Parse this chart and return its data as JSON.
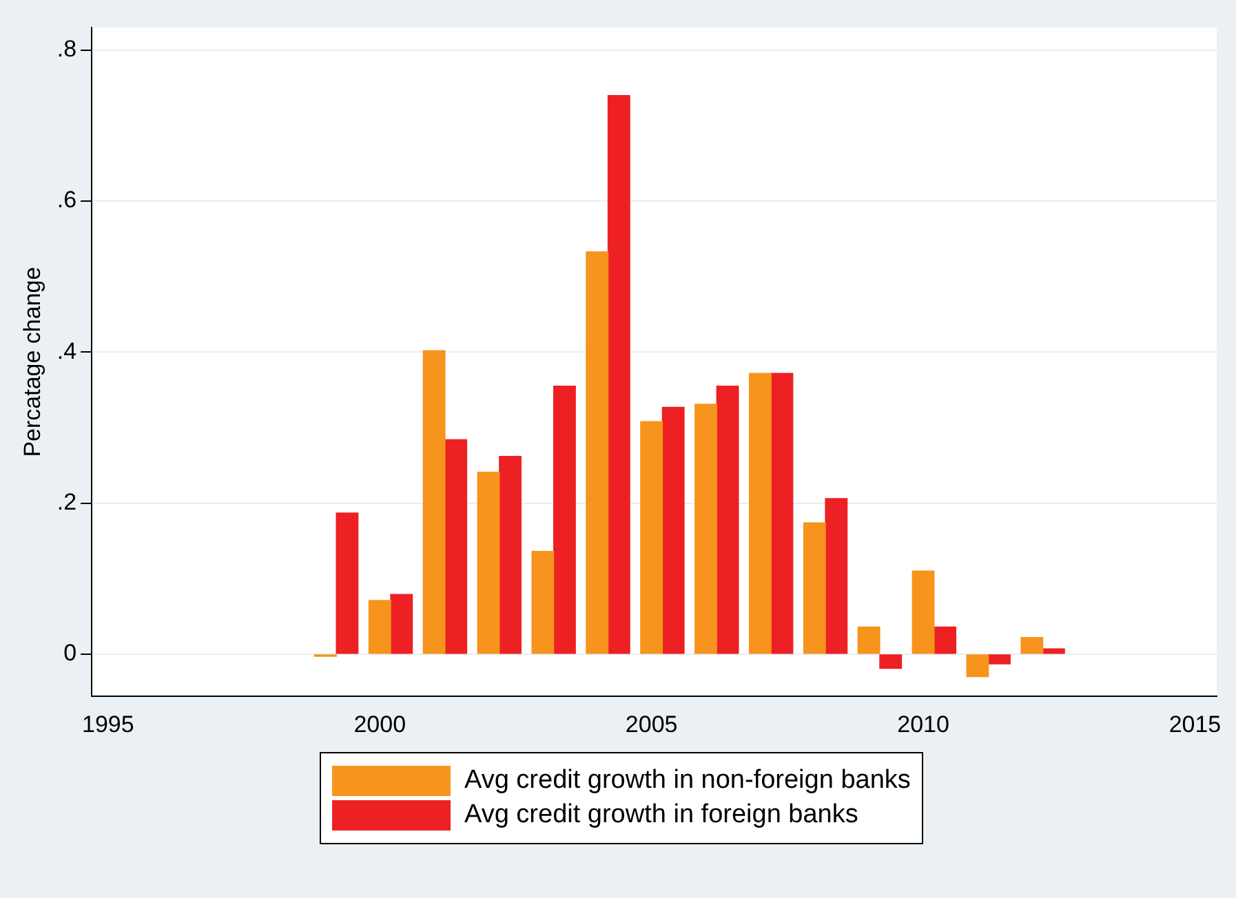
{
  "chart_data": {
    "type": "bar",
    "ylabel": "Percatage change",
    "series": [
      {
        "name": "Avg credit growth in non-foreign banks",
        "color": "#f7941d",
        "x": [
          1999,
          2000,
          2001,
          2002,
          2003,
          2004,
          2005,
          2006,
          2007,
          2008,
          2009,
          2010,
          2011,
          2012
        ],
        "values": [
          -0.003,
          0.071,
          0.402,
          0.241,
          0.136,
          0.533,
          0.308,
          0.331,
          0.372,
          0.174,
          0.036,
          0.11,
          -0.03,
          0.022
        ]
      },
      {
        "name": "Avg credit growth in foreign banks",
        "color": "#ed2024",
        "x": [
          1999.4,
          2000.4,
          2001.4,
          2002.4,
          2003.4,
          2004.4,
          2005.4,
          2006.4,
          2007.4,
          2008.4,
          2009.4,
          2010.4,
          2011.4,
          2012.4
        ],
        "values": [
          0.187,
          0.079,
          0.284,
          0.262,
          0.355,
          0.74,
          0.327,
          0.355,
          0.372,
          0.206,
          -0.019,
          0.036,
          -0.013,
          0.007
        ]
      }
    ],
    "xlim": [
      1994.7,
      2015.4
    ],
    "xticks": [
      1995,
      2000,
      2005,
      2010,
      2015
    ],
    "ylim": [
      -0.056,
      0.83
    ],
    "yticks": [
      {
        "value": 0,
        "label": "0"
      },
      {
        "value": 0.2,
        "label": ".2"
      },
      {
        "value": 0.4,
        "label": ".4"
      },
      {
        "value": 0.6,
        "label": ".6"
      },
      {
        "value": 0.8,
        "label": ".8"
      }
    ],
    "grid": "y",
    "legend": "bottom"
  }
}
